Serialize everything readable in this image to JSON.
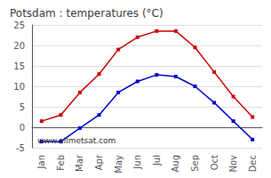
{
  "chart_data": {
    "type": "line",
    "title": "Potsdam : temperatures (°C)",
    "categories": [
      "Jan",
      "Feb",
      "Mar",
      "Apr",
      "May",
      "Jun",
      "Jul",
      "Aug",
      "Sep",
      "Oct",
      "Nov",
      "Dec"
    ],
    "series": [
      {
        "color": "#cc0000",
        "marker": "square",
        "values": [
          1.5,
          3.0,
          8.5,
          13.0,
          19.0,
          22.0,
          23.5,
          23.5,
          19.5,
          13.5,
          7.5,
          2.5
        ]
      },
      {
        "color": "#0000cc",
        "marker": "square",
        "values": [
          -3.5,
          -3.5,
          -0.2,
          3.0,
          8.5,
          11.2,
          12.8,
          12.4,
          10.0,
          6.0,
          1.5,
          -3.0
        ]
      }
    ],
    "ylim": [
      -5,
      25
    ],
    "yticks": [
      -5,
      0,
      5,
      10,
      15,
      20,
      25
    ],
    "grid": true,
    "annotations": [
      "www.allmetsat.com"
    ]
  }
}
